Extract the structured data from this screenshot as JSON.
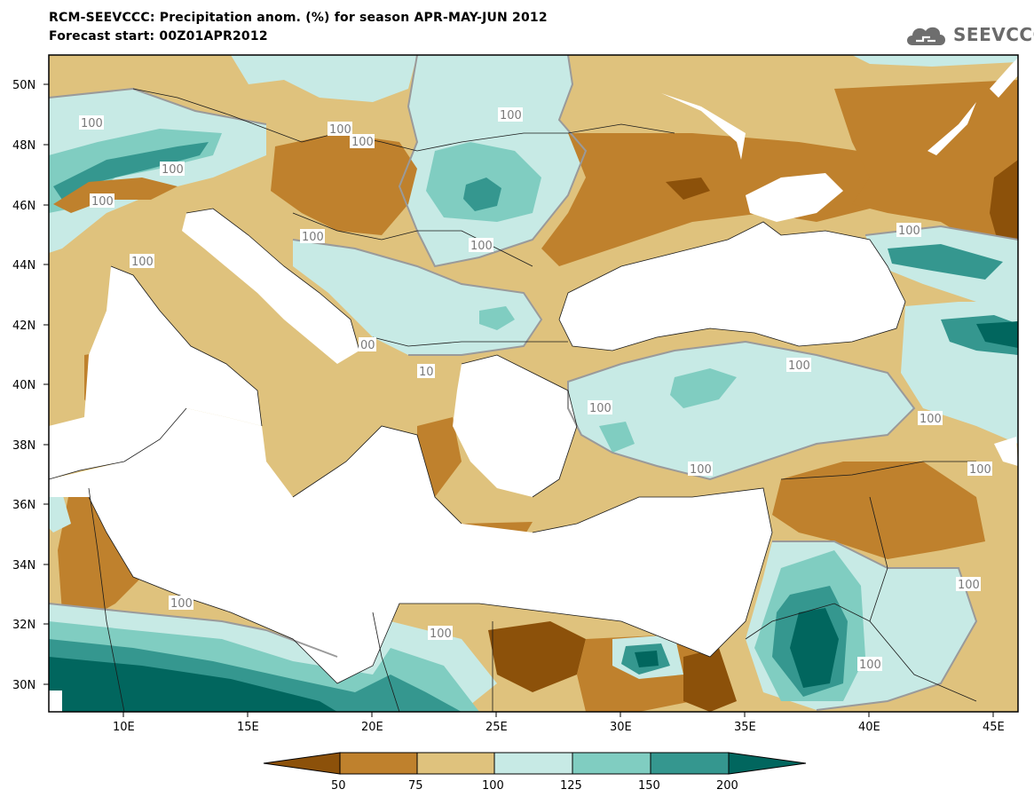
{
  "header": {
    "title_line_1": "RCM-SEEVCCC: Precipitation anom. (%) for season APR-MAY-JUN 2012",
    "title_line_2": "Forecast start: 00Z01APR2012",
    "logo_text": "SEEVCCC",
    "logo_icon": "cloud-logo-icon"
  },
  "map": {
    "lon_ticks": [
      "10E",
      "15E",
      "20E",
      "25E",
      "30E",
      "35E",
      "40E",
      "45E"
    ],
    "lat_ticks": [
      "50N",
      "48N",
      "46N",
      "44N",
      "42N",
      "40N",
      "38N",
      "36N",
      "34N",
      "32N",
      "30N"
    ],
    "contour_label": "100",
    "contour_labels": [
      "100",
      "100",
      "100",
      "100",
      "100",
      "100",
      "100",
      "100",
      "100",
      "100",
      "100",
      "100",
      "100",
      "100",
      "100",
      "100",
      "100",
      "100",
      "100",
      "100",
      "00",
      "10"
    ],
    "colors": {
      "below_50": "#8c510a",
      "range_50_75": "#bf812d",
      "range_75_100": "#dfc27d",
      "range_100_125": "#c7eae5",
      "range_125_150": "#80cdc1",
      "range_150_200": "#35978f",
      "above_200": "#01665e",
      "sea": "#ffffff",
      "contour": "#9a9a9a"
    }
  },
  "colorbar": {
    "labels": [
      "50",
      "75",
      "100",
      "125",
      "150",
      "200"
    ],
    "colors": [
      "#8c510a",
      "#bf812d",
      "#dfc27d",
      "#c7eae5",
      "#80cdc1",
      "#35978f",
      "#01665e"
    ]
  }
}
